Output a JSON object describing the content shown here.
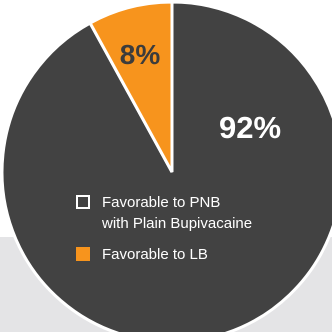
{
  "colors": {
    "major": "#424242",
    "minor": "#f7941d",
    "outline": "#ffffff",
    "major_label_text": "#ffffff",
    "minor_label_text": "#3c3c3c",
    "background_band": "#e4e4e6"
  },
  "chart_data": {
    "type": "pie",
    "slices": [
      {
        "value": 92,
        "label": "92%"
      },
      {
        "value": 8,
        "label": "8%"
      }
    ],
    "legend": {
      "placement": "bottom-center",
      "entries": [
        {
          "line1": "Favorable to PNB",
          "line2": "with Plain Bupivacaine",
          "swatch": "outline"
        },
        {
          "line1": "Favorable to LB",
          "line2": "",
          "swatch": "filled"
        }
      ]
    }
  }
}
